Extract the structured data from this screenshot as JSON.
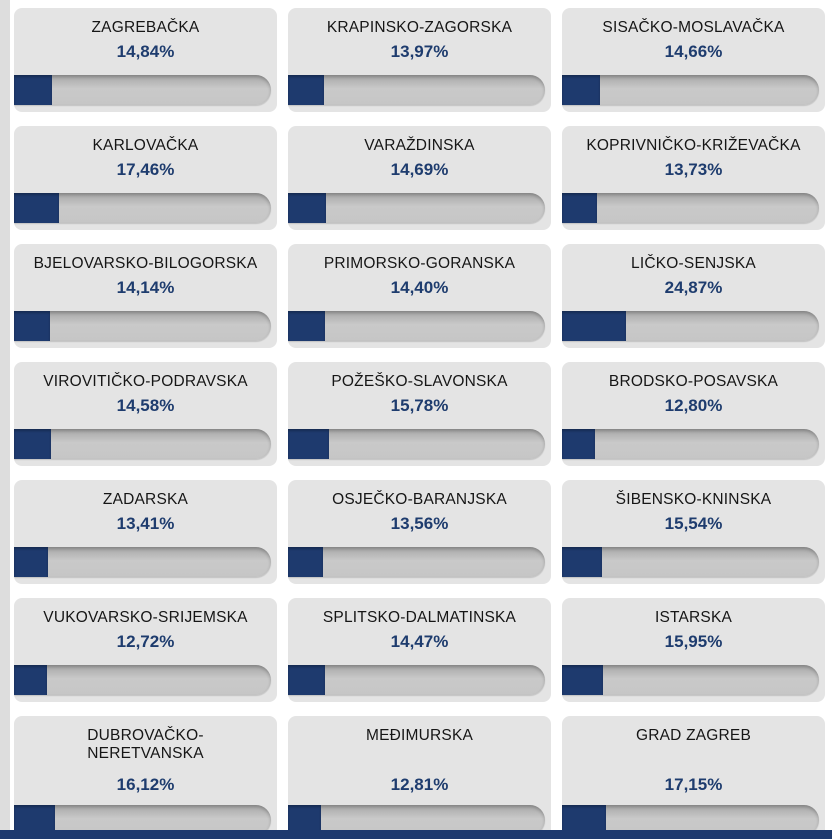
{
  "page": {
    "background_color": "#ffffff",
    "left_strip_color": "#dddddd",
    "footer_color": "#1e3a6e"
  },
  "theme": {
    "card_bg": "#e4e4e4",
    "title_color": "#161616",
    "percent_color": "#1e3c6e",
    "bar_fill_color": "#1e3a6e",
    "bar_track_color": "#c3c3c3"
  },
  "chart_data": {
    "type": "bar",
    "unit": "%",
    "xlim": [
      0,
      100
    ],
    "legend": false,
    "grid": false,
    "categories": [
      "ZAGREBAČKA",
      "KRAPINSKO-ZAGORSKA",
      "SISAČKO-MOSLAVAČKA",
      "KARLOVAČKA",
      "VARAŽDINSKA",
      "KOPRIVNIČKO-KRIŽEVAČKA",
      "BJELOVARSKO-BILOGORSKA",
      "PRIMORSKO-GORANSKA",
      "LIČKO-SENJSKA",
      "VIROVITIČKO-PODRAVSKA",
      "POŽEŠKO-SLAVONSKA",
      "BRODSKO-POSAVSKA",
      "ZADARSKA",
      "OSJEČKO-BARANJSKA",
      "ŠIBENSKO-KNINSKA",
      "VUKOVARSKO-SRIJEMSKA",
      "SPLITSKO-DALMATINSKA",
      "ISTARSKA",
      "DUBROVAČKO-NERETVANSKA",
      "MEĐIMURSKA",
      "GRAD ZAGREB"
    ],
    "values": [
      14.84,
      13.97,
      14.66,
      17.46,
      14.69,
      13.73,
      14.14,
      14.4,
      24.87,
      14.58,
      15.78,
      12.8,
      13.41,
      13.56,
      15.54,
      12.72,
      14.47,
      15.95,
      16.12,
      12.81,
      17.15
    ],
    "value_labels": [
      "14,84%",
      "13,97%",
      "14,66%",
      "17,46%",
      "14,69%",
      "13,73%",
      "14,14%",
      "14,40%",
      "24,87%",
      "14,58%",
      "15,78%",
      "12,80%",
      "13,41%",
      "13,56%",
      "15,54%",
      "12,72%",
      "14,47%",
      "15,95%",
      "16,12%",
      "12,81%",
      "17,15%"
    ]
  },
  "cards": [
    {
      "name": "ZAGREBAČKA",
      "percent_label": "14,84%",
      "value": 14.84
    },
    {
      "name": "KRAPINSKO-ZAGORSKA",
      "percent_label": "13,97%",
      "value": 13.97
    },
    {
      "name": "SISAČKO-MOSLAVAČKA",
      "percent_label": "14,66%",
      "value": 14.66
    },
    {
      "name": "KARLOVAČKA",
      "percent_label": "17,46%",
      "value": 17.46
    },
    {
      "name": "VARAŽDINSKA",
      "percent_label": "14,69%",
      "value": 14.69
    },
    {
      "name": "KOPRIVNIČKO-KRIŽEVAČKA",
      "percent_label": "13,73%",
      "value": 13.73
    },
    {
      "name": "BJELOVARSKO-BILOGORSKA",
      "percent_label": "14,14%",
      "value": 14.14
    },
    {
      "name": "PRIMORSKO-GORANSKA",
      "percent_label": "14,40%",
      "value": 14.4
    },
    {
      "name": "LIČKO-SENJSKA",
      "percent_label": "24,87%",
      "value": 24.87
    },
    {
      "name": "VIROVITIČKO-PODRAVSKA",
      "percent_label": "14,58%",
      "value": 14.58
    },
    {
      "name": "POŽEŠKO-SLAVONSKA",
      "percent_label": "15,78%",
      "value": 15.78
    },
    {
      "name": "BRODSKO-POSAVSKA",
      "percent_label": "12,80%",
      "value": 12.8
    },
    {
      "name": "ZADARSKA",
      "percent_label": "13,41%",
      "value": 13.41
    },
    {
      "name": "OSJEČKO-BARANJSKA",
      "percent_label": "13,56%",
      "value": 13.56
    },
    {
      "name": "ŠIBENSKO-KNINSKA",
      "percent_label": "15,54%",
      "value": 15.54
    },
    {
      "name": "VUKOVARSKO-SRIJEMSKA",
      "percent_label": "12,72%",
      "value": 12.72
    },
    {
      "name": "SPLITSKO-DALMATINSKA",
      "percent_label": "14,47%",
      "value": 14.47
    },
    {
      "name": "ISTARSKA",
      "percent_label": "15,95%",
      "value": 15.95
    },
    {
      "name": "DUBROVAČKO-\nNERETVANSKA",
      "percent_label": "16,12%",
      "value": 16.12
    },
    {
      "name": "MEĐIMURSKA",
      "percent_label": "12,81%",
      "value": 12.81
    },
    {
      "name": "GRAD ZAGREB",
      "percent_label": "17,15%",
      "value": 17.15
    }
  ]
}
